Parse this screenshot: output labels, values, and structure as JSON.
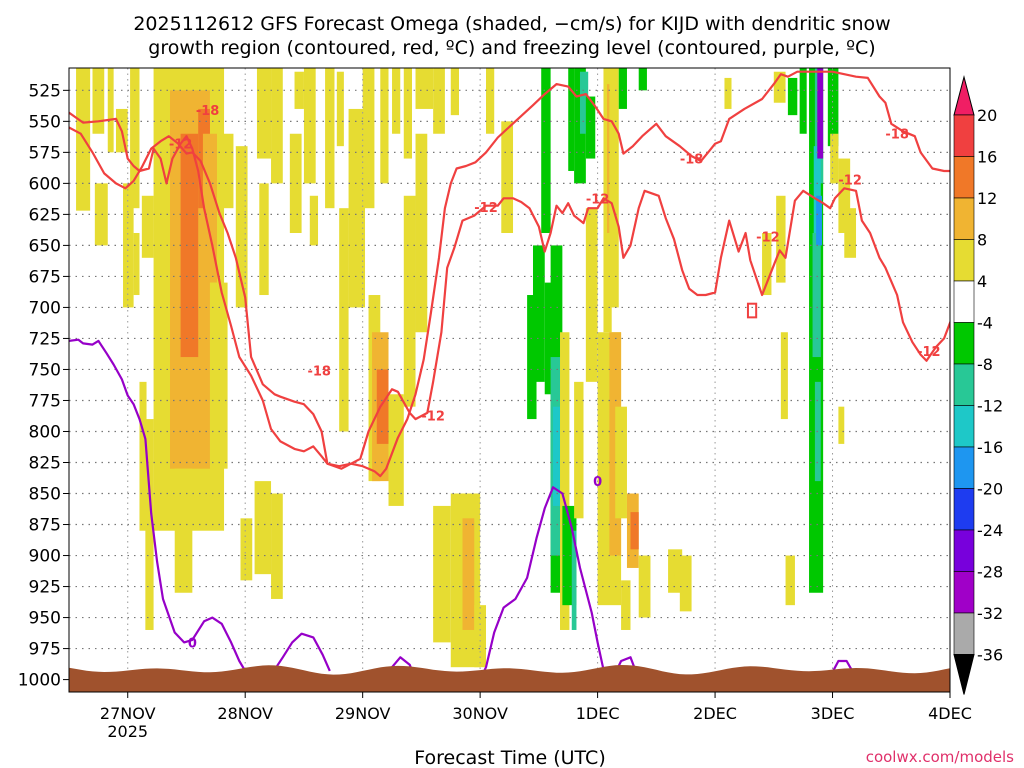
{
  "chart_data": {
    "type": "time-height cross-section",
    "title_line1": "2025112612 GFS Forecast Omega (shaded, −cm/s) for KIJD with dendritic snow",
    "title_line2": "growth region (contoured, red, ºC) and freezing level (contoured, purple, ºC)",
    "xlabel": "Forecast Time (UTC)",
    "credit": "coolwx.com/models",
    "x_ticks": [
      "27NOV",
      "28NOV",
      "29NOV",
      "30NOV",
      "1DEC",
      "2DEC",
      "3DEC",
      "4DEC"
    ],
    "x_tick_positions_days": [
      0.5,
      1.5,
      2.5,
      3.5,
      4.5,
      5.5,
      6.5,
      7.5
    ],
    "x_sublabel": "2025",
    "x_range_days": [
      0.0,
      7.5
    ],
    "y_ticks": [
      525,
      550,
      575,
      600,
      625,
      650,
      675,
      700,
      725,
      750,
      775,
      800,
      825,
      850,
      875,
      900,
      925,
      950,
      975,
      1000
    ],
    "y_range_hpa": [
      507,
      1010
    ],
    "colorbar": {
      "labels": [
        "20",
        "16",
        "12",
        "8",
        "4",
        "-4",
        "-8",
        "-12",
        "-16",
        "-20",
        "-24",
        "-28",
        "-32",
        "-36"
      ],
      "colors": [
        "#f01e64",
        "#f04040",
        "#f07828",
        "#f0b432",
        "#e6dc32",
        "#ffffff",
        "#00c800",
        "#28c896",
        "#1ec8c8",
        "#1e96f0",
        "#1e3cf0",
        "#7800dc",
        "#a000c8",
        "#aaaaaa",
        "#000000"
      ]
    },
    "shading_colors": {
      "light_yellow": "#e6dc32",
      "dark_yellow": "#f0b432",
      "orange": "#f07828",
      "green": "#00c800",
      "teal": "#28c896",
      "cyan": "#1ec8c8",
      "blue": "#1e96f0",
      "purple": "#8c00c8",
      "terrain": "#a0522d",
      "dgz_line": "#f04040",
      "freezing_line": "#9600c8"
    },
    "dgz_labels": [
      {
        "text": "-18",
        "day": 1.18,
        "p": 541
      },
      {
        "text": "-12",
        "day": 0.95,
        "p": 568
      },
      {
        "text": "-18",
        "day": 2.13,
        "p": 751
      },
      {
        "text": "-12",
        "day": 3.1,
        "p": 787
      },
      {
        "text": "-12",
        "day": 3.55,
        "p": 619
      },
      {
        "text": "-12",
        "day": 4.5,
        "p": 612
      },
      {
        "text": "-18",
        "day": 5.3,
        "p": 580
      },
      {
        "text": "-12",
        "day": 5.95,
        "p": 643
      },
      {
        "text": "-12",
        "day": 6.65,
        "p": 597
      },
      {
        "text": "-18",
        "day": 7.05,
        "p": 560
      },
      {
        "text": "-12",
        "day": 7.32,
        "p": 735
      }
    ],
    "freezing_labels": [
      {
        "text": "0",
        "day": 1.05,
        "p": 970
      },
      {
        "text": "0",
        "day": 4.5,
        "p": 840
      }
    ],
    "dgz_upper": [
      [
        0.0,
        543
      ],
      [
        0.12,
        551
      ],
      [
        0.25,
        550
      ],
      [
        0.4,
        548
      ],
      [
        0.45,
        558
      ],
      [
        0.5,
        580
      ],
      [
        0.55,
        586
      ],
      [
        0.6,
        590
      ],
      [
        0.68,
        588
      ],
      [
        0.72,
        572
      ],
      [
        0.78,
        580
      ],
      [
        0.83,
        600
      ],
      [
        0.88,
        580
      ],
      [
        0.95,
        568
      ],
      [
        1.0,
        562
      ],
      [
        1.05,
        572
      ],
      [
        1.1,
        590
      ],
      [
        1.15,
        620
      ],
      [
        1.22,
        650
      ],
      [
        1.3,
        688
      ],
      [
        1.38,
        715
      ],
      [
        1.45,
        740
      ],
      [
        1.55,
        755
      ],
      [
        1.65,
        775
      ],
      [
        1.72,
        798
      ],
      [
        1.8,
        808
      ],
      [
        1.92,
        814
      ],
      [
        2.0,
        816
      ],
      [
        2.08,
        812
      ],
      [
        2.15,
        820
      ],
      [
        2.2,
        826
      ],
      [
        2.3,
        828
      ],
      [
        2.4,
        826
      ],
      [
        2.5,
        828
      ],
      [
        2.6,
        832
      ],
      [
        2.65,
        836
      ],
      [
        2.7,
        830
      ],
      [
        2.8,
        805
      ],
      [
        2.88,
        790
      ],
      [
        2.95,
        770
      ],
      [
        3.02,
        742
      ],
      [
        3.08,
        705
      ],
      [
        3.15,
        660
      ],
      [
        3.2,
        620
      ],
      [
        3.25,
        600
      ],
      [
        3.3,
        588
      ],
      [
        3.38,
        586
      ],
      [
        3.46,
        583
      ],
      [
        3.55,
        575
      ],
      [
        3.65,
        563
      ],
      [
        3.8,
        550
      ],
      [
        3.95,
        537
      ],
      [
        4.05,
        528
      ],
      [
        4.15,
        520
      ],
      [
        4.25,
        522
      ],
      [
        4.32,
        530
      ],
      [
        4.4,
        528
      ],
      [
        4.48,
        538
      ],
      [
        4.55,
        548
      ],
      [
        4.62,
        550
      ],
      [
        4.68,
        560
      ],
      [
        4.72,
        576
      ],
      [
        4.8,
        570
      ],
      [
        4.88,
        562
      ],
      [
        5.0,
        552
      ],
      [
        5.08,
        562
      ],
      [
        5.2,
        570
      ],
      [
        5.3,
        578
      ],
      [
        5.38,
        582
      ],
      [
        5.45,
        574
      ],
      [
        5.5,
        568
      ],
      [
        5.55,
        566
      ],
      [
        5.62,
        548
      ],
      [
        5.75,
        540
      ],
      [
        5.9,
        532
      ],
      [
        6.0,
        520
      ],
      [
        6.06,
        512
      ],
      [
        6.12,
        514
      ],
      [
        6.2,
        510
      ],
      [
        6.5,
        510
      ],
      [
        6.6,
        512
      ],
      [
        6.7,
        514
      ],
      [
        6.8,
        515
      ],
      [
        6.9,
        530
      ],
      [
        6.95,
        535
      ],
      [
        7.0,
        552
      ],
      [
        7.1,
        558
      ],
      [
        7.2,
        562
      ],
      [
        7.25,
        575
      ],
      [
        7.35,
        588
      ],
      [
        7.45,
        590
      ],
      [
        7.55,
        590
      ],
      [
        7.6,
        575
      ],
      [
        7.65,
        558
      ]
    ],
    "dgz_lower": [
      [
        0.0,
        555
      ],
      [
        0.1,
        560
      ],
      [
        0.2,
        575
      ],
      [
        0.3,
        592
      ],
      [
        0.4,
        600
      ],
      [
        0.48,
        604
      ],
      [
        0.55,
        598
      ],
      [
        0.62,
        587
      ],
      [
        0.7,
        572
      ],
      [
        0.78,
        566
      ],
      [
        0.85,
        562
      ],
      [
        0.93,
        568
      ],
      [
        1.0,
        576
      ],
      [
        1.05,
        575
      ],
      [
        1.12,
        582
      ],
      [
        1.2,
        600
      ],
      [
        1.28,
        624
      ],
      [
        1.35,
        640
      ],
      [
        1.42,
        660
      ],
      [
        1.5,
        692
      ],
      [
        1.55,
        740
      ],
      [
        1.65,
        762
      ],
      [
        1.75,
        770
      ],
      [
        1.8,
        772
      ],
      [
        1.92,
        776
      ],
      [
        2.0,
        778
      ],
      [
        2.08,
        786
      ],
      [
        2.15,
        800
      ],
      [
        2.2,
        826
      ],
      [
        2.32,
        830
      ],
      [
        2.48,
        822
      ],
      [
        2.55,
        800
      ],
      [
        2.65,
        780
      ],
      [
        2.75,
        766
      ],
      [
        2.8,
        768
      ],
      [
        2.9,
        785
      ],
      [
        2.95,
        790
      ],
      [
        3.05,
        785
      ],
      [
        3.1,
        760
      ],
      [
        3.17,
        720
      ],
      [
        3.22,
        668
      ],
      [
        3.28,
        652
      ],
      [
        3.35,
        630
      ],
      [
        3.45,
        626
      ],
      [
        3.55,
        618
      ],
      [
        3.65,
        618
      ],
      [
        3.7,
        612
      ],
      [
        3.78,
        612
      ],
      [
        3.85,
        615
      ],
      [
        3.92,
        620
      ],
      [
        4.0,
        635
      ],
      [
        4.05,
        655
      ],
      [
        4.1,
        640
      ],
      [
        4.15,
        618
      ],
      [
        4.2,
        624
      ],
      [
        4.25,
        616
      ],
      [
        4.3,
        626
      ],
      [
        4.38,
        632
      ],
      [
        4.42,
        620
      ],
      [
        4.5,
        620
      ],
      [
        4.55,
        612
      ],
      [
        4.62,
        616
      ],
      [
        4.68,
        635
      ],
      [
        4.72,
        660
      ],
      [
        4.78,
        650
      ],
      [
        4.85,
        620
      ],
      [
        4.9,
        606
      ],
      [
        5.02,
        610
      ],
      [
        5.08,
        628
      ],
      [
        5.15,
        645
      ],
      [
        5.22,
        670
      ],
      [
        5.28,
        685
      ],
      [
        5.35,
        690
      ],
      [
        5.42,
        690
      ],
      [
        5.5,
        688
      ],
      [
        5.55,
        660
      ],
      [
        5.62,
        630
      ],
      [
        5.7,
        655
      ],
      [
        5.76,
        640
      ],
      [
        5.8,
        662
      ],
      [
        5.9,
        690
      ],
      [
        6.0,
        666
      ],
      [
        6.05,
        654
      ],
      [
        6.1,
        660
      ],
      [
        6.18,
        614
      ],
      [
        6.25,
        606
      ],
      [
        6.35,
        612
      ],
      [
        6.42,
        616
      ],
      [
        6.48,
        620
      ],
      [
        6.52,
        612
      ],
      [
        6.6,
        604
      ],
      [
        6.7,
        606
      ],
      [
        6.75,
        630
      ],
      [
        6.82,
        640
      ],
      [
        6.9,
        660
      ],
      [
        6.95,
        668
      ],
      [
        7.05,
        690
      ],
      [
        7.1,
        712
      ],
      [
        7.18,
        728
      ],
      [
        7.25,
        738
      ],
      [
        7.3,
        743
      ],
      [
        7.38,
        732
      ],
      [
        7.45,
        725
      ],
      [
        7.55,
        700
      ],
      [
        7.58,
        670
      ],
      [
        7.65,
        665
      ]
    ],
    "freezing_level": [
      [
        0.0,
        727
      ],
      [
        0.08,
        726
      ],
      [
        0.12,
        729
      ],
      [
        0.2,
        730
      ],
      [
        0.25,
        727
      ],
      [
        0.32,
        737
      ],
      [
        0.38,
        746
      ],
      [
        0.45,
        758
      ],
      [
        0.5,
        771
      ],
      [
        0.55,
        778
      ],
      [
        0.6,
        790
      ],
      [
        0.65,
        806
      ],
      [
        0.7,
        866
      ],
      [
        0.75,
        905
      ],
      [
        0.8,
        935
      ],
      [
        0.9,
        962
      ],
      [
        0.98,
        970
      ],
      [
        1.05,
        968
      ],
      [
        1.15,
        953
      ],
      [
        1.22,
        950
      ],
      [
        1.3,
        955
      ],
      [
        1.38,
        970
      ],
      [
        1.45,
        985
      ],
      [
        1.5,
        993
      ]
    ],
    "freezing_level_2": [
      [
        1.75,
        992
      ],
      [
        1.82,
        982
      ],
      [
        1.9,
        970
      ],
      [
        1.98,
        963
      ],
      [
        2.08,
        966
      ],
      [
        2.16,
        980
      ],
      [
        2.22,
        993
      ]
    ],
    "freezing_level_3": [
      [
        2.65,
        1000
      ],
      [
        2.75,
        990
      ],
      [
        2.82,
        982
      ],
      [
        2.9,
        988
      ],
      [
        2.95,
        1000
      ]
    ],
    "freezing_level_4": [
      [
        3.5,
        1000
      ],
      [
        3.55,
        990
      ],
      [
        3.62,
        962
      ],
      [
        3.7,
        942
      ],
      [
        3.8,
        935
      ],
      [
        3.9,
        918
      ],
      [
        3.98,
        886
      ],
      [
        4.05,
        862
      ],
      [
        4.12,
        845
      ],
      [
        4.2,
        850
      ],
      [
        4.28,
        878
      ],
      [
        4.35,
        910
      ],
      [
        4.45,
        946
      ],
      [
        4.5,
        970
      ],
      [
        4.55,
        992
      ]
    ],
    "freezing_level_5": [
      [
        4.65,
        995
      ],
      [
        4.7,
        985
      ],
      [
        4.78,
        982
      ],
      [
        4.82,
        992
      ]
    ],
    "freezing_level_6": [
      [
        6.5,
        994
      ],
      [
        6.55,
        985
      ],
      [
        6.62,
        985
      ],
      [
        6.68,
        995
      ]
    ]
  }
}
